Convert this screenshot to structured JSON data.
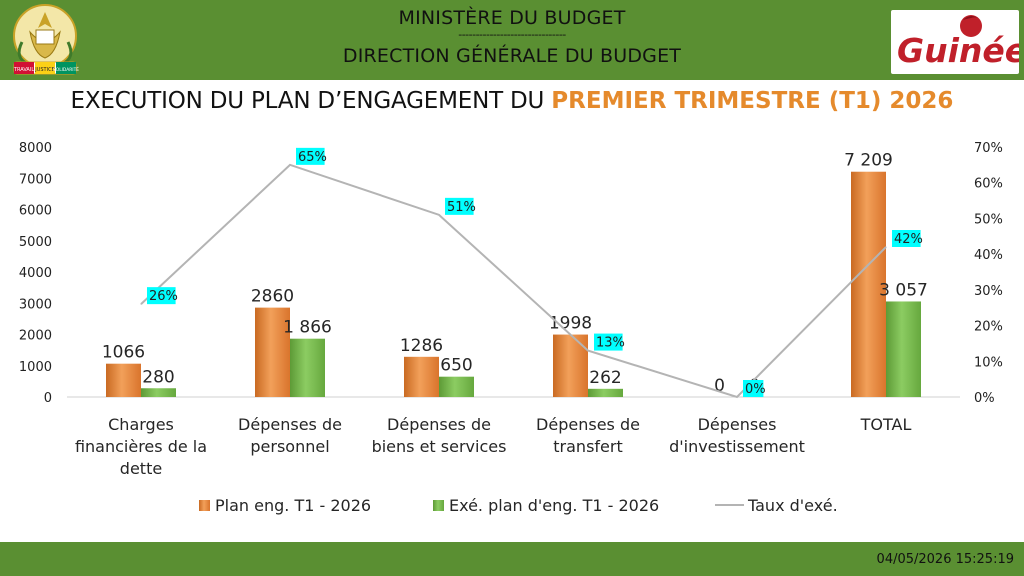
{
  "header": {
    "ministry": "MINISTÈRE DU BUDGET",
    "separator": "-------------------------------",
    "direction": "DIRECTION GÉNÉRALE DU BUDGET"
  },
  "emblem": {
    "motto_left": "TRAVAIL",
    "motto_center": "JUSTICE",
    "motto_right": "SOLIDARITÉ"
  },
  "brand_logo": {
    "text": "Guinée"
  },
  "title": {
    "part_a": "EXECUTION DU PLAN D’ENGAGEMENT DU ",
    "part_b": "PREMIER TRIMESTRE (T1) 2026"
  },
  "colors": {
    "band_green": "#5a8f32",
    "plan_orange": "#e07b33",
    "exec_green": "#70ad47",
    "rate_line": "#b4b4b4",
    "rate_label_bg": "#00ffff",
    "title_accent": "#e58a2c"
  },
  "chart_data": {
    "type": "bar",
    "categories": [
      [
        "Charges",
        "financières de la",
        "dette"
      ],
      [
        "Dépenses de",
        "personnel"
      ],
      [
        "Dépenses de",
        "biens et services"
      ],
      [
        "Dépenses de",
        "transfert"
      ],
      [
        "Dépenses",
        "d'investissement"
      ],
      [
        "TOTAL"
      ]
    ],
    "series": [
      {
        "name": "Plan eng. T1 - 2026",
        "values": [
          1066,
          2860,
          1286,
          1998,
          0,
          7209
        ],
        "labels": [
          "1066",
          "2860",
          "1286",
          "1998",
          "0",
          "7 209"
        ]
      },
      {
        "name": "Exé. plan d'eng. T1 - 2026",
        "values": [
          280,
          1866,
          650,
          262,
          0,
          3057
        ],
        "labels": [
          "280",
          "1 866",
          "650",
          "262",
          "0",
          "3 057"
        ]
      }
    ],
    "line_series": {
      "name": "Taux d'exé.",
      "values": [
        26,
        65,
        51,
        13,
        0,
        42
      ],
      "labels": [
        "26%",
        "65%",
        "51%",
        "13%",
        "0%",
        "42%"
      ]
    },
    "y_left": {
      "min": 0,
      "max": 8000,
      "step": 1000,
      "ticks": [
        "0",
        "1000",
        "2000",
        "3000",
        "4000",
        "5000",
        "6000",
        "7000",
        "8000"
      ]
    },
    "y_right": {
      "min": 0,
      "max": 70,
      "step": 10,
      "ticks": [
        "0%",
        "10%",
        "20%",
        "30%",
        "40%",
        "50%",
        "60%",
        "70%"
      ]
    },
    "grid": false,
    "legend_position": "bottom"
  },
  "footer": {
    "timestamp": "04/05/2026 15:25:19"
  }
}
